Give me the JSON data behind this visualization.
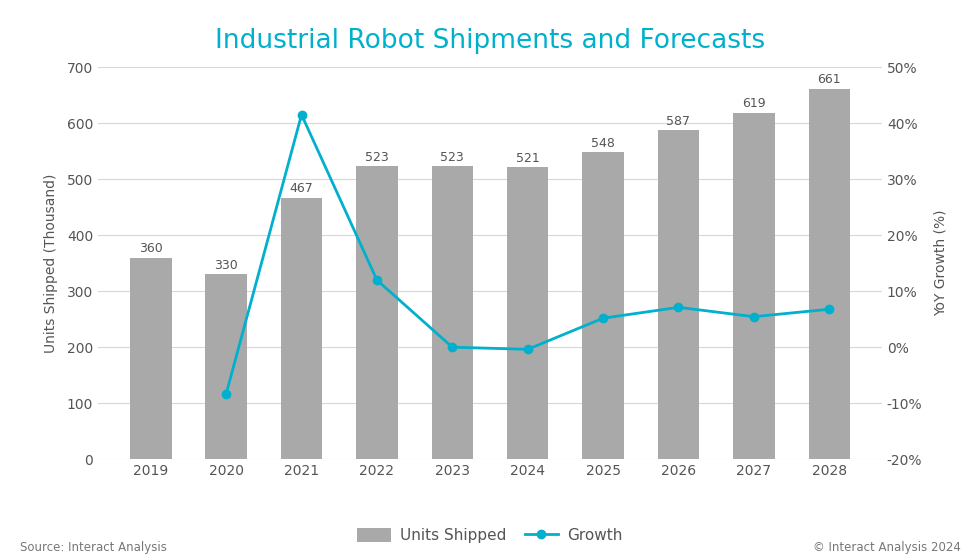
{
  "years": [
    2019,
    2020,
    2021,
    2022,
    2023,
    2024,
    2025,
    2026,
    2027,
    2028
  ],
  "units": [
    360,
    330,
    467,
    523,
    523,
    521,
    548,
    587,
    619,
    661
  ],
  "growth": [
    null,
    -8.33,
    41.52,
    11.99,
    0.0,
    -0.38,
    5.18,
    7.12,
    5.45,
    6.78
  ],
  "bar_color": "#a9a9a9",
  "line_color": "#00b0cc",
  "title": "Industrial Robot Shipments and Forecasts",
  "title_color": "#00b0cc",
  "ylabel_left": "Units Shipped (Thousand)",
  "ylabel_right": "YoY Growth (%)",
  "ylim_left": [
    0,
    700
  ],
  "ylim_right": [
    -20,
    50
  ],
  "yticks_left": [
    0,
    100,
    200,
    300,
    400,
    500,
    600,
    700
  ],
  "yticks_right": [
    -20,
    -10,
    0,
    10,
    20,
    30,
    40,
    50
  ],
  "source_text": "Source: Interact Analysis",
  "copyright_text": "© Interact Analysis 2024",
  "legend_labels": [
    "Units Shipped",
    "Growth"
  ],
  "background_color": "#ffffff",
  "grid_color": "#ccd9e8",
  "label_color": "#555555",
  "axis_label_color": "#555555",
  "title_fontsize": 19,
  "axis_label_fontsize": 10,
  "tick_fontsize": 10,
  "bar_label_fontsize": 9,
  "legend_fontsize": 11,
  "bar_width": 0.55
}
